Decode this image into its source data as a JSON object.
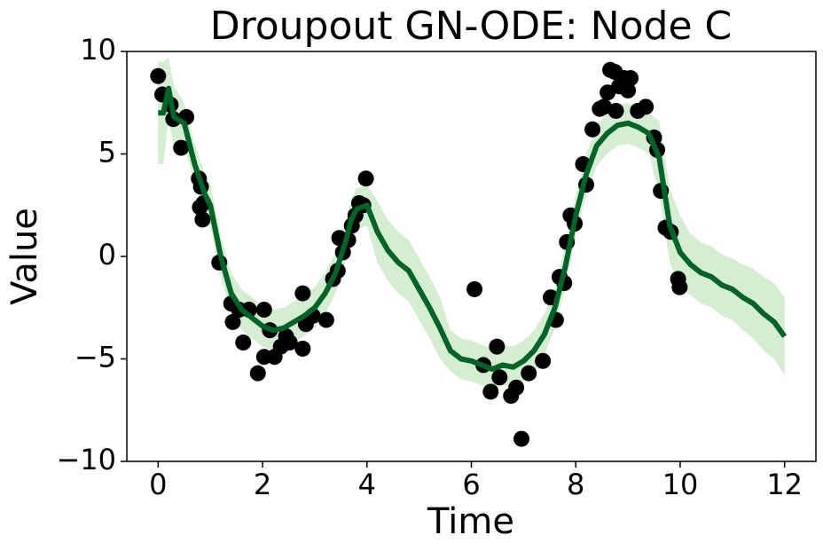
{
  "chart_data": {
    "type": "line",
    "title": "Droupout GN-ODE: Node C",
    "xlabel": "Time",
    "ylabel": "Value",
    "xlim": [
      -0.6,
      12.6
    ],
    "ylim": [
      -10,
      10
    ],
    "xticks": [
      0,
      2,
      4,
      6,
      8,
      10,
      12
    ],
    "yticks": [
      {
        "value": -10,
        "label": "−10"
      },
      {
        "value": -5,
        "label": "−5"
      },
      0,
      5,
      10
    ],
    "color": "#006428",
    "band_color": "#a1d99b",
    "point_color": "#000000",
    "x": [
      0,
      0.1,
      0.2,
      0.3,
      0.5,
      0.7,
      0.9,
      1.0,
      1.2,
      1.4,
      1.6,
      1.8,
      2.0,
      2.2,
      2.4,
      2.6,
      2.8,
      3.0,
      3.2,
      3.4,
      3.6,
      3.7,
      3.8,
      4.0,
      4.2,
      4.4,
      4.6,
      4.8,
      5.0,
      5.2,
      5.4,
      5.6,
      5.8,
      6.0,
      6.2,
      6.4,
      6.6,
      6.8,
      7.0,
      7.2,
      7.4,
      7.6,
      7.8,
      8.0,
      8.2,
      8.4,
      8.6,
      8.8,
      9.0,
      9.2,
      9.4,
      9.6,
      9.8,
      10.0,
      10.2,
      10.4,
      10.6,
      10.8,
      11.0,
      11.2,
      11.4,
      11.6,
      11.8,
      12.0
    ],
    "values": [
      7.0,
      7.0,
      8.2,
      6.8,
      6.5,
      4.5,
      3.0,
      2.5,
      0,
      -1.8,
      -2.6,
      -3.0,
      -3.4,
      -3.6,
      -3.5,
      -3.2,
      -2.9,
      -2.5,
      -1.8,
      -0.8,
      0.8,
      1.8,
      2.3,
      2.5,
      1.2,
      0.3,
      -0.3,
      -0.7,
      -1.6,
      -2.5,
      -3.5,
      -4.6,
      -5.0,
      -5.1,
      -5.3,
      -5.5,
      -5.3,
      -5.4,
      -5.1,
      -4.6,
      -3.8,
      -2.5,
      -0.5,
      2.0,
      4.0,
      5.4,
      6.0,
      6.4,
      6.5,
      6.3,
      6.0,
      4.8,
      1.5,
      0.2,
      -0.4,
      -0.8,
      -1.0,
      -1.4,
      -1.6,
      -2.0,
      -2.3,
      -2.8,
      -3.2,
      -3.9
    ],
    "band": {
      "upper": [
        9.5,
        9.5,
        9.7,
        8.3,
        7.5,
        5.5,
        4.0,
        3.5,
        1.0,
        -0.8,
        -1.6,
        -2.0,
        -2.4,
        -2.6,
        -2.5,
        -2.2,
        -1.9,
        -1.5,
        -0.8,
        0.2,
        1.8,
        2.8,
        3.3,
        3.5,
        2.7,
        1.8,
        1.2,
        0.8,
        -0.1,
        -1.0,
        -2.0,
        -3.6,
        -4.0,
        -4.1,
        -4.3,
        -4.5,
        -4.3,
        -4.4,
        -4.1,
        -3.6,
        -2.8,
        -1.5,
        0.5,
        3.0,
        5.0,
        6.4,
        7.0,
        7.4,
        7.5,
        7.3,
        7.0,
        6.6,
        3.3,
        2.0,
        1.1,
        0.7,
        0.5,
        0.1,
        -0.1,
        -0.4,
        -0.6,
        -1.0,
        -1.3,
        -2.0
      ],
      "lower": [
        4.5,
        4.5,
        6.7,
        5.3,
        5.5,
        3.5,
        2.0,
        1.5,
        -1.0,
        -2.8,
        -3.6,
        -4.0,
        -4.4,
        -4.6,
        -4.5,
        -4.2,
        -3.9,
        -3.5,
        -2.8,
        -1.8,
        -0.2,
        0.8,
        1.3,
        1.5,
        -0.3,
        -1.2,
        -1.8,
        -2.2,
        -3.1,
        -4.0,
        -5.0,
        -5.6,
        -6.0,
        -6.1,
        -6.3,
        -6.5,
        -6.3,
        -6.4,
        -6.1,
        -5.6,
        -4.8,
        -3.5,
        -1.5,
        1.0,
        3.0,
        4.4,
        5.0,
        5.4,
        5.5,
        5.3,
        5.0,
        3.0,
        -0.3,
        -1.6,
        -1.9,
        -2.3,
        -2.5,
        -2.9,
        -3.1,
        -3.6,
        -4.0,
        -4.6,
        -5.0,
        -5.8
      ]
    },
    "points": {
      "x": [
        0,
        0.08,
        0.24,
        0.29,
        0.44,
        0.54,
        0.78,
        0.82,
        0.8,
        0.87,
        0.85,
        1.17,
        1.4,
        1.43,
        1.55,
        1.63,
        1.74,
        1.91,
        2.03,
        2.03,
        2.14,
        2.23,
        2.35,
        2.45,
        2.52,
        2.77,
        2.77,
        2.83,
        2.96,
        3.22,
        3.35,
        3.44,
        3.47,
        3.54,
        3.64,
        3.71,
        3.78,
        3.85,
        3.93,
        3.98,
        6.06,
        6.23,
        6.37,
        6.49,
        6.54,
        6.76,
        6.86,
        6.96,
        7.1,
        7.37,
        7.52,
        7.62,
        7.69,
        7.78,
        7.83,
        7.9,
        7.98,
        8.14,
        8.2,
        8.32,
        8.46,
        8.54,
        8.61,
        8.66,
        8.75,
        8.77,
        8.83,
        8.92,
        9.0,
        9.05,
        9.19,
        9.34,
        9.5,
        9.56,
        9.63,
        9.72,
        9.82,
        9.96,
        9.99
      ],
      "y": [
        8.8,
        7.9,
        7.4,
        6.7,
        5.3,
        6.8,
        3.8,
        3.4,
        2.4,
        2.6,
        1.8,
        -0.3,
        -2.3,
        -3.2,
        -2.6,
        -4.2,
        -2.6,
        -5.7,
        -2.6,
        -4.9,
        -3.6,
        -4.9,
        -4.4,
        -3.9,
        -4.2,
        -4.5,
        -1.8,
        -3.3,
        -2.9,
        -3.1,
        -1.1,
        -0.7,
        0.9,
        0.2,
        0.8,
        1.5,
        2.0,
        2.6,
        2.5,
        3.8,
        -1.6,
        -5.3,
        -6.6,
        -4.4,
        -5.9,
        -6.8,
        -6.4,
        -8.9,
        -5.7,
        -5.1,
        -2.0,
        -3.1,
        -1.0,
        -1.3,
        0.7,
        2.0,
        1.6,
        4.5,
        3.5,
        6.2,
        7.2,
        7.3,
        8.0,
        9.1,
        9.0,
        7.1,
        8.3,
        8.7,
        8.1,
        8.7,
        7.1,
        7.3,
        5.8,
        5.2,
        3.2,
        1.4,
        1.2,
        -1.1,
        -1.5
      ]
    }
  }
}
